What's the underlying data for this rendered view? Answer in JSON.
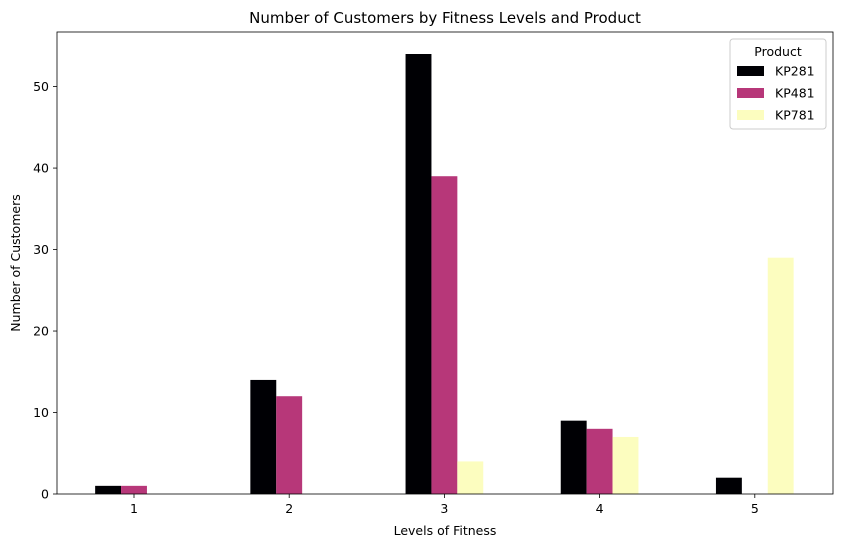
{
  "chart_data": {
    "type": "bar",
    "title": "Number of Customers by Fitness Levels and Product",
    "xlabel": "Levels of Fitness",
    "ylabel": "Number of Customers",
    "categories": [
      "1",
      "2",
      "3",
      "4",
      "5"
    ],
    "ylim": [
      0,
      56.7
    ],
    "yticks": [
      0,
      10,
      20,
      30,
      40,
      50
    ],
    "grid": false,
    "legend": {
      "title": "Product",
      "placement": "top-right"
    },
    "series": [
      {
        "name": "KP281",
        "color": "#000004",
        "values": [
          1,
          14,
          54,
          9,
          2
        ]
      },
      {
        "name": "KP481",
        "color": "#b73779",
        "values": [
          1,
          12,
          39,
          8,
          0
        ]
      },
      {
        "name": "KP781",
        "color": "#fcfdbf",
        "values": [
          0,
          0,
          4,
          7,
          29
        ]
      }
    ]
  }
}
